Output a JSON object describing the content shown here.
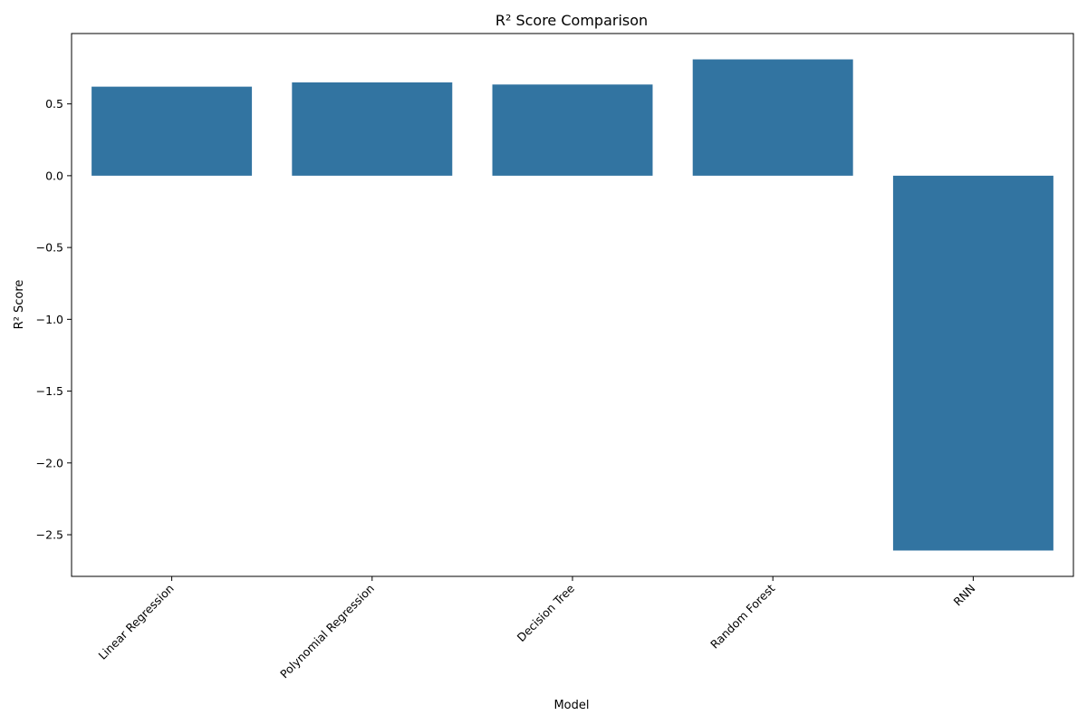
{
  "chart_data": {
    "type": "bar",
    "title": "R² Score Comparison",
    "xlabel": "Model",
    "ylabel": "R² Score",
    "categories": [
      "Linear Regression",
      "Polynomial Regression",
      "Decision Tree",
      "Random Forest",
      "RNN"
    ],
    "values": [
      0.62,
      0.65,
      0.635,
      0.81,
      -2.61
    ],
    "ylim": [
      -2.79,
      0.99
    ],
    "yticks": [
      0.5,
      0.0,
      -0.5,
      -1.0,
      -1.5,
      -2.0,
      -2.5
    ],
    "ytick_labels": [
      "0.5",
      "0.0",
      "−0.5",
      "−1.0",
      "−1.5",
      "−2.0",
      "−2.5"
    ],
    "bar_color": "#3274a1",
    "grid": false,
    "legend": "none",
    "xtick_rotation": "45deg"
  }
}
